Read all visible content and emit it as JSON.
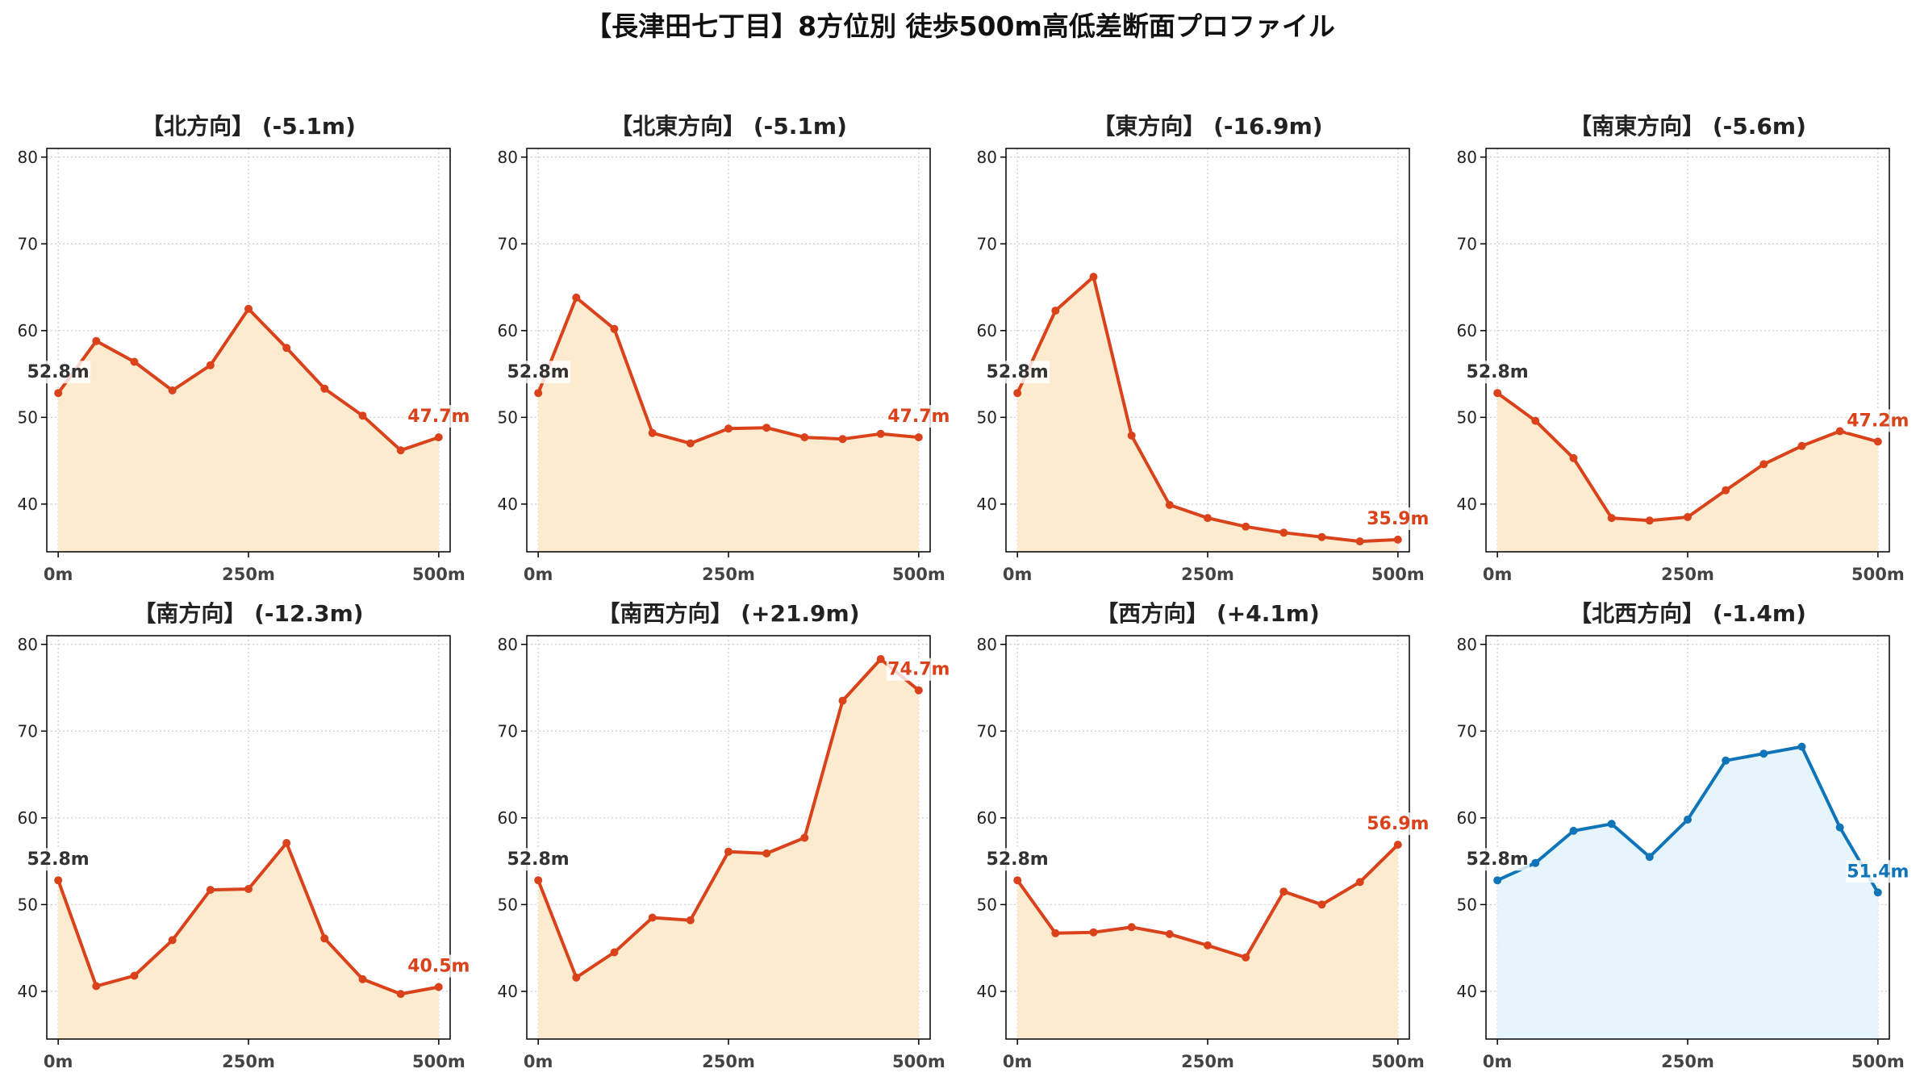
{
  "suptitle": "【長津田七丁目】8方位別 徒歩500m高低差断面プロファイル",
  "colors": {
    "line_default": "#d9421a",
    "fill_default": "#fdebd0",
    "line_nw": "#0f75b8",
    "fill_nw": "#e6f4fb",
    "start_label": "#333333"
  },
  "chart_data": [
    {
      "type": "line",
      "title": "【北方向】 (-5.1m)",
      "x": [
        0,
        50,
        100,
        150,
        200,
        250,
        300,
        350,
        400,
        450,
        500
      ],
      "y": [
        52.8,
        58.8,
        56.4,
        53.1,
        56.0,
        62.5,
        58.0,
        53.3,
        50.2,
        46.2,
        47.7
      ],
      "start_label": "52.8m",
      "end_label": "47.7m",
      "xticks": [
        "0m",
        "250m",
        "500m"
      ],
      "yticks": [
        40,
        50,
        60,
        70,
        80
      ],
      "ylim": [
        34.5,
        81
      ],
      "xlim": [
        -15,
        515
      ],
      "grid": true,
      "style": "default"
    },
    {
      "type": "line",
      "title": "【北東方向】 (-5.1m)",
      "x": [
        0,
        50,
        100,
        150,
        200,
        250,
        300,
        350,
        400,
        450,
        500
      ],
      "y": [
        52.8,
        63.8,
        60.2,
        48.2,
        47.0,
        48.7,
        48.8,
        47.7,
        47.5,
        48.1,
        47.7
      ],
      "start_label": "52.8m",
      "end_label": "47.7m",
      "xticks": [
        "0m",
        "250m",
        "500m"
      ],
      "yticks": [
        40,
        50,
        60,
        70,
        80
      ],
      "ylim": [
        34.5,
        81
      ],
      "xlim": [
        -15,
        515
      ],
      "grid": true,
      "style": "default"
    },
    {
      "type": "line",
      "title": "【東方向】 (-16.9m)",
      "x": [
        0,
        50,
        100,
        150,
        200,
        250,
        300,
        350,
        400,
        450,
        500
      ],
      "y": [
        52.8,
        62.3,
        66.2,
        47.9,
        39.9,
        38.4,
        37.4,
        36.7,
        36.2,
        35.7,
        35.9
      ],
      "start_label": "52.8m",
      "end_label": "35.9m",
      "xticks": [
        "0m",
        "250m",
        "500m"
      ],
      "yticks": [
        40,
        50,
        60,
        70,
        80
      ],
      "ylim": [
        34.5,
        81
      ],
      "xlim": [
        -15,
        515
      ],
      "grid": true,
      "style": "default"
    },
    {
      "type": "line",
      "title": "【南東方向】 (-5.6m)",
      "x": [
        0,
        50,
        100,
        150,
        200,
        250,
        300,
        350,
        400,
        450,
        500
      ],
      "y": [
        52.8,
        49.6,
        45.3,
        38.4,
        38.1,
        38.5,
        41.6,
        44.6,
        46.7,
        48.4,
        47.2
      ],
      "start_label": "52.8m",
      "end_label": "47.2m",
      "xticks": [
        "0m",
        "250m",
        "500m"
      ],
      "yticks": [
        40,
        50,
        60,
        70,
        80
      ],
      "ylim": [
        34.5,
        81
      ],
      "xlim": [
        -15,
        515
      ],
      "grid": true,
      "style": "default"
    },
    {
      "type": "line",
      "title": "【南方向】 (-12.3m)",
      "x": [
        0,
        50,
        100,
        150,
        200,
        250,
        300,
        350,
        400,
        450,
        500
      ],
      "y": [
        52.8,
        40.6,
        41.8,
        45.9,
        51.7,
        51.8,
        57.1,
        46.1,
        41.4,
        39.7,
        40.5
      ],
      "start_label": "52.8m",
      "end_label": "40.5m",
      "xticks": [
        "0m",
        "250m",
        "500m"
      ],
      "yticks": [
        40,
        50,
        60,
        70,
        80
      ],
      "ylim": [
        34.5,
        81
      ],
      "xlim": [
        -15,
        515
      ],
      "grid": true,
      "style": "default"
    },
    {
      "type": "line",
      "title": "【南西方向】 (+21.9m)",
      "x": [
        0,
        50,
        100,
        150,
        200,
        250,
        300,
        350,
        400,
        450,
        500
      ],
      "y": [
        52.8,
        41.6,
        44.5,
        48.5,
        48.2,
        56.1,
        55.9,
        57.7,
        73.5,
        78.3,
        74.7
      ],
      "start_label": "52.8m",
      "end_label": "74.7m",
      "xticks": [
        "0m",
        "250m",
        "500m"
      ],
      "yticks": [
        40,
        50,
        60,
        70,
        80
      ],
      "ylim": [
        34.5,
        81
      ],
      "xlim": [
        -15,
        515
      ],
      "grid": true,
      "style": "default"
    },
    {
      "type": "line",
      "title": "【西方向】 (+4.1m)",
      "x": [
        0,
        50,
        100,
        150,
        200,
        250,
        300,
        350,
        400,
        450,
        500
      ],
      "y": [
        52.8,
        46.7,
        46.8,
        47.4,
        46.6,
        45.3,
        43.9,
        51.5,
        50.0,
        52.6,
        56.9
      ],
      "start_label": "52.8m",
      "end_label": "56.9m",
      "xticks": [
        "0m",
        "250m",
        "500m"
      ],
      "yticks": [
        40,
        50,
        60,
        70,
        80
      ],
      "ylim": [
        34.5,
        81
      ],
      "xlim": [
        -15,
        515
      ],
      "grid": true,
      "style": "default"
    },
    {
      "type": "line",
      "title": "【北西方向】 (-1.4m)",
      "x": [
        0,
        50,
        100,
        150,
        200,
        250,
        300,
        350,
        400,
        450,
        500
      ],
      "y": [
        52.8,
        54.8,
        58.5,
        59.3,
        55.5,
        59.8,
        66.6,
        67.4,
        68.2,
        58.9,
        51.4
      ],
      "start_label": "52.8m",
      "end_label": "51.4m",
      "xticks": [
        "0m",
        "250m",
        "500m"
      ],
      "yticks": [
        40,
        50,
        60,
        70,
        80
      ],
      "ylim": [
        34.5,
        81
      ],
      "xlim": [
        -15,
        515
      ],
      "grid": true,
      "style": "nw"
    }
  ]
}
